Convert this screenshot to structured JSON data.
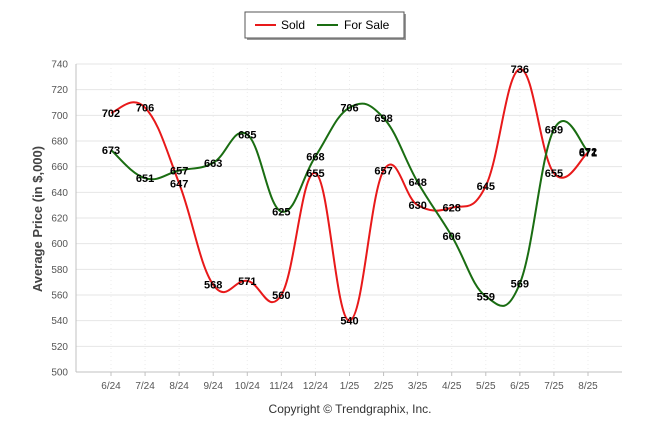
{
  "chart_data": {
    "type": "line",
    "categories": [
      "6/24",
      "7/24",
      "8/24",
      "9/24",
      "10/24",
      "11/24",
      "12/24",
      "1/25",
      "2/25",
      "3/25",
      "4/25",
      "5/25",
      "6/25",
      "7/25",
      "8/25"
    ],
    "series": [
      {
        "name": "Sold",
        "color": "#e8191a",
        "values": [
          702,
          706,
          647,
          568,
          571,
          560,
          655,
          540,
          657,
          630,
          628,
          645,
          736,
          655,
          671
        ]
      },
      {
        "name": "For Sale",
        "color": "#1a6d12",
        "values": [
          673,
          651,
          657,
          663,
          685,
          625,
          668,
          706,
          698,
          648,
          606,
          559,
          569,
          689,
          672
        ]
      }
    ],
    "ylabel": "Average Price (in $,000)",
    "ylim": [
      500,
      740
    ],
    "yticks": [
      500,
      520,
      540,
      560,
      580,
      600,
      620,
      640,
      660,
      680,
      700,
      720,
      740
    ],
    "grid": true,
    "legend_position": "top-center",
    "data_labels": true
  },
  "copyright": "Copyright © Trendgraphix, Inc."
}
